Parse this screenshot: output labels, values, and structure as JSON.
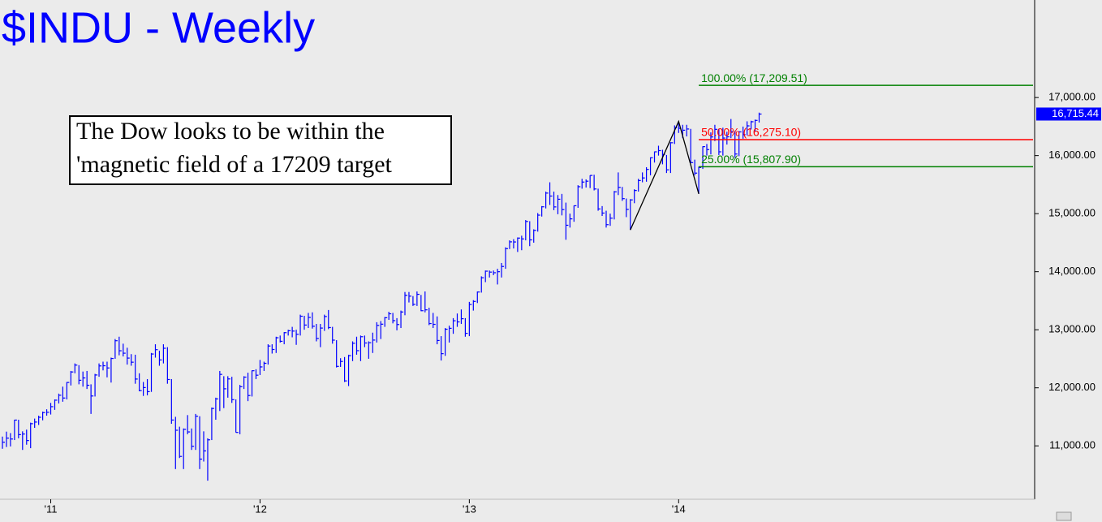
{
  "chart_data": {
    "type": "ohlc",
    "title": "$INDU - Weekly",
    "note": [
      "The Dow looks to be within the",
      "'magnetic field of a 17209 target"
    ],
    "color": "#0000ff",
    "categories": [
      null,
      null,
      null,
      null,
      null,
      null,
      null,
      null,
      null,
      null,
      null,
      null,
      "'11",
      null,
      null,
      null,
      null,
      null,
      null,
      null,
      null,
      null,
      null,
      null,
      null,
      null,
      null,
      null,
      null,
      null,
      null,
      null,
      null,
      null,
      null,
      null,
      null,
      null,
      null,
      null,
      null,
      null,
      null,
      null,
      null,
      null,
      null,
      null,
      null,
      null,
      null,
      null,
      null,
      null,
      null,
      null,
      null,
      null,
      null,
      null,
      null,
      null,
      null,
      null,
      "'12",
      null,
      null,
      null,
      null,
      null,
      null,
      null,
      null,
      null,
      null,
      null,
      null,
      null,
      null,
      null,
      null,
      null,
      null,
      null,
      null,
      null,
      null,
      null,
      null,
      null,
      null,
      null,
      null,
      null,
      null,
      null,
      null,
      null,
      null,
      null,
      null,
      null,
      null,
      null,
      null,
      null,
      null,
      null,
      null,
      null,
      null,
      null,
      null,
      null,
      null,
      null,
      "'13",
      null,
      null,
      null,
      null,
      null,
      null,
      null,
      null,
      null,
      null,
      null,
      null,
      null,
      null,
      null,
      null,
      null,
      null,
      null,
      null,
      null,
      null,
      null,
      null,
      null,
      null,
      null,
      null,
      null,
      null,
      null,
      null,
      null,
      null,
      null,
      null,
      null,
      null,
      null,
      null,
      null,
      null,
      null,
      null,
      null,
      null,
      null,
      null,
      null,
      null,
      null,
      "'14",
      null,
      null,
      null,
      null,
      null,
      null,
      null,
      null,
      null,
      null,
      null,
      null,
      null,
      null,
      null,
      null,
      null,
      null,
      null,
      null
    ],
    "high": [
      11160,
      11245,
      11220,
      11450,
      11450,
      11250,
      11280,
      11400,
      11470,
      11520,
      11590,
      11630,
      11740,
      11800,
      11900,
      12020,
      12100,
      12290,
      12420,
      12390,
      12280,
      12290,
      12060,
      12240,
      12420,
      12450,
      12450,
      12520,
      12840,
      12880,
      12760,
      12690,
      12580,
      12570,
      12250,
      12100,
      12150,
      12600,
      12750,
      12640,
      12750,
      12700,
      12150,
      11500,
      11330,
      11300,
      11530,
      11300,
      11550,
      11510,
      11250,
      11130,
      11660,
      11830,
      12290,
      12200,
      12200,
      12190,
      11800,
      12050,
      12200,
      12260,
      12300,
      12320,
      12480,
      12450,
      12750,
      12750,
      12880,
      12900,
      12960,
      13000,
      13050,
      13000,
      13260,
      13240,
      13290,
      13300,
      13100,
      13100,
      13260,
      13340,
      13050,
      12820,
      12510,
      12530,
      12570,
      12800,
      12880,
      12900,
      12900,
      12800,
      12950,
      13130,
      13150,
      13220,
      13310,
      13290,
      13200,
      13330,
      13650,
      13650,
      13580,
      13660,
      13600,
      13660,
      13380,
      13290,
      13230,
      12890,
      13030,
      13070,
      13200,
      13280,
      13350,
      13200,
      13480,
      13510,
      13660,
      13920,
      14020,
      14020,
      14020,
      14050,
      14150,
      14420,
      14540,
      14560,
      14590,
      14620,
      14890,
      14870,
      14730,
      15010,
      15130,
      15380,
      15540,
      15380,
      15320,
      15340,
      15190,
      15000,
      15140,
      15490,
      15600,
      15590,
      15660,
      15670,
      15430,
      15130,
      15050,
      15000,
      15390,
      15710,
      15460,
      15260,
      15250,
      15420,
      15600,
      15710,
      15800,
      15970,
      16070,
      16170,
      16100,
      16010,
      16230,
      16520,
      16590,
      16530,
      16530,
      16460,
      15930,
      15810,
      16160,
      16200,
      16400,
      16530,
      16460,
      16480,
      16410,
      16630,
      16430,
      16420,
      16500,
      16590,
      16600,
      16620,
      16740
    ],
    "low": [
      10950,
      10980,
      10990,
      11100,
      11130,
      10930,
      11020,
      10960,
      11310,
      11360,
      11440,
      11520,
      11540,
      11620,
      11730,
      11760,
      11800,
      12040,
      12250,
      12060,
      12020,
      11980,
      11550,
      11850,
      12190,
      12300,
      12180,
      12090,
      12500,
      12560,
      12540,
      12400,
      12380,
      12070,
      11940,
      11860,
      11870,
      11930,
      12520,
      12380,
      12420,
      12070,
      11380,
      10600,
      10790,
      10600,
      11200,
      10930,
      10930,
      10600,
      10730,
      10400,
      11100,
      11450,
      11600,
      11650,
      11830,
      11740,
      11230,
      11200,
      11980,
      11770,
      11850,
      12150,
      12220,
      12290,
      12400,
      12590,
      12600,
      12780,
      12750,
      12900,
      12870,
      12740,
      12900,
      13000,
      13030,
      13020,
      12800,
      12700,
      12980,
      13010,
      12760,
      12350,
      12360,
      12100,
      12030,
      12460,
      12570,
      12460,
      12700,
      12500,
      12600,
      12780,
      12840,
      13050,
      13170,
      13110,
      12990,
      13030,
      13250,
      13470,
      13410,
      13410,
      13320,
      13300,
      13080,
      13030,
      12750,
      12470,
      12550,
      12780,
      12930,
      13050,
      13100,
      12880,
      12890,
      13330,
      13460,
      13640,
      13820,
      13900,
      13940,
      13780,
      13900,
      14050,
      14390,
      14400,
      14340,
      14370,
      14540,
      14440,
      14500,
      14690,
      14950,
      15090,
      15150,
      15060,
      14990,
      14970,
      14550,
      14760,
      14860,
      15100,
      15430,
      15450,
      15440,
      15400,
      15050,
      14960,
      14760,
      14790,
      14900,
      15320,
      15220,
      14940,
      14720,
      15180,
      15380,
      15540,
      15550,
      15660,
      15880,
      16000,
      15850,
      15700,
      15700,
      16200,
      16390,
      16300,
      16330,
      15870,
      15660,
      15340,
      15770,
      16000,
      16020,
      16250,
      16010,
      16000,
      16190,
      16300,
      15960,
      15990,
      16290,
      16350,
      16450,
      16420,
      16570
    ],
    "close": [
      11062,
      11133,
      11118,
      11444,
      11193,
      11204,
      11092,
      11382,
      11410,
      11492,
      11573,
      11578,
      11675,
      11787,
      11872,
      11824,
      12092,
      12273,
      12391,
      12130,
      12170,
      12044,
      11859,
      12221,
      12377,
      12380,
      12342,
      12505,
      12811,
      12638,
      12596,
      12512,
      12441,
      12151,
      11952,
      12004,
      11934,
      12582,
      12657,
      12480,
      12681,
      12143,
      11445,
      11269,
      10818,
      11285,
      11240,
      10993,
      11510,
      10772,
      10913,
      11104,
      11644,
      11809,
      12231,
      11983,
      12153,
      11796,
      11231,
      12019,
      12184,
      11867,
      12294,
      12217,
      12360,
      12422,
      12720,
      12660,
      12862,
      12801,
      12950,
      12983,
      12977,
      12922,
      13233,
      13081,
      13212,
      13060,
      12850,
      13029,
      13228,
      13038,
      12821,
      12369,
      12454,
      12119,
      12554,
      12767,
      12640,
      12880,
      12772,
      12777,
      12822,
      13075,
      13096,
      13207,
      13275,
      13157,
      13090,
      13306,
      13593,
      13579,
      13437,
      13610,
      13328,
      13343,
      13107,
      13093,
      12815,
      12588,
      13009,
      13025,
      13155,
      13135,
      13190,
      12938,
      13435,
      13488,
      13650,
      13896,
      14009,
      13993,
      13982,
      14000,
      14090,
      14397,
      14514,
      14512,
      14579,
      14565,
      14865,
      14548,
      14712,
      14974,
      15118,
      15354,
      15303,
      15116,
      15248,
      15070,
      14800,
      14910,
      15136,
      15464,
      15544,
      15559,
      15658,
      15425,
      15081,
      15010,
      14810,
      14922,
      15376,
      15452,
      15258,
      15073,
      15237,
      15399,
      15570,
      15615,
      15762,
      15962,
      16065,
      16086,
      16020,
      15755,
      16221,
      16479,
      16469,
      16437,
      16458,
      15879,
      15698,
      15794,
      16154,
      16103,
      16321,
      16452,
      16065,
      16302,
      16323,
      16412,
      16027,
      16408,
      16361,
      16512,
      16583,
      16606,
      16715.44
    ],
    "last_label": "16,715.44",
    "ylim": [
      10080,
      18680
    ],
    "yticks": [
      {
        "value": 11000,
        "label": "11,000.00"
      },
      {
        "value": 12000,
        "label": "12,000.00"
      },
      {
        "value": 13000,
        "label": "13,000.00"
      },
      {
        "value": 14000,
        "label": "14,000.00"
      },
      {
        "value": 15000,
        "label": "15,000.00"
      },
      {
        "value": 16000,
        "label": "16,000.00"
      },
      {
        "value": 17000,
        "label": "17,000.00"
      }
    ],
    "pattern": {
      "x": [
        156,
        168,
        173
      ],
      "values": [
        14719.46,
        16588.25,
        15340.69
      ],
      "color": "#000000"
    },
    "levels": [
      {
        "label": "100.00% (17,209.51)",
        "value": 17209.51,
        "color": "#008000"
      },
      {
        "label": "50.00% (16,275.10)",
        "value": 16275.1,
        "color": "#ff0000"
      },
      {
        "label": "25.00% (15,807.90)",
        "value": 15807.9,
        "color": "#008000"
      }
    ]
  }
}
